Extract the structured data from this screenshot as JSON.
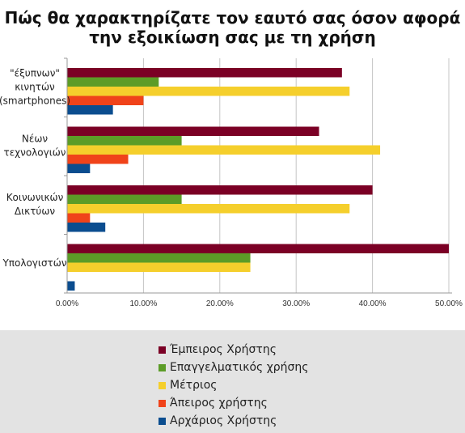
{
  "title_line1": "Πώς θα χαρακτηρίζατε τον εαυτό σας όσον αφορά",
  "title_line2": "την εξοικίωση σας με τη χρήση",
  "chart_data": {
    "type": "bar",
    "orientation": "horizontal",
    "categories": [
      [
        "\"έξυπνων\"",
        "κινητών",
        "(smartphones)"
      ],
      [
        "Νέων",
        "τεχνολογιών"
      ],
      [
        "Κοινωνικών",
        "Δικτύων"
      ],
      [
        "Υπολογιστών"
      ]
    ],
    "series": [
      {
        "name": "Έμπειρος Χρήστης",
        "color": "#7b0025",
        "values": [
          0.36,
          0.33,
          0.4,
          0.5
        ]
      },
      {
        "name": "Επαγγελματικός χρήσης",
        "color": "#5c9c27",
        "values": [
          0.12,
          0.15,
          0.15,
          0.24
        ]
      },
      {
        "name": "Μέτριος",
        "color": "#f5cf2c",
        "values": [
          0.37,
          0.41,
          0.37,
          0.24
        ]
      },
      {
        "name": "Άπειρος χρήστης",
        "color": "#f0431a",
        "values": [
          0.1,
          0.08,
          0.03,
          0.0
        ]
      },
      {
        "name": "Αρχάριος Χρήστης",
        "color": "#0b4d8f",
        "values": [
          0.06,
          0.03,
          0.05,
          0.01
        ]
      }
    ],
    "xlim": [
      0,
      0.5
    ],
    "xticks": [
      "0.00%",
      "10.00%",
      "20.00%",
      "30.00%",
      "40.00%",
      "50.00%"
    ],
    "grid": "vertical",
    "legend_position": "bottom"
  }
}
